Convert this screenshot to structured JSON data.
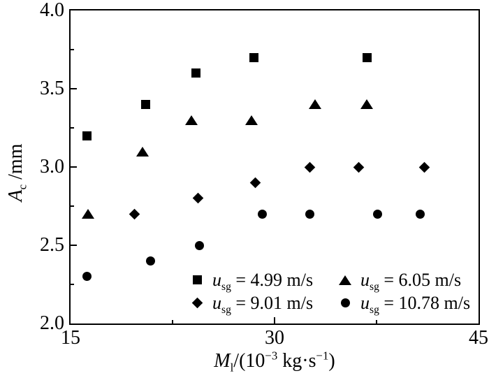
{
  "figure": {
    "background": "#ffffff",
    "ink": "#000000"
  },
  "chart_data": {
    "type": "scatter",
    "title": "",
    "xlabel": "M_l/(10^-3 kg·s^-1)",
    "ylabel": "A_c/mm",
    "xlim": [
      15,
      45
    ],
    "ylim": [
      2.0,
      4.0
    ],
    "grid": false,
    "legend_position": "inside bottom-center",
    "x_major_ticks": [
      15,
      30,
      45
    ],
    "x_tick_labels": [
      "15",
      "30",
      "45"
    ],
    "x_minor_ticks": [
      22.5,
      37.5
    ],
    "y_major_ticks": [
      2.0,
      2.5,
      3.0,
      3.5,
      4.0
    ],
    "y_tick_labels": [
      "2.0",
      "2.5",
      "3.0",
      "3.5",
      "4.0"
    ],
    "y_minor_ticks": [
      2.25,
      2.75,
      3.25,
      3.75
    ],
    "marker_color": "#000000",
    "series": [
      {
        "name": "u_sg = 4.99 m/s",
        "marker": "square",
        "points": [
          [
            16.2,
            3.2
          ],
          [
            20.5,
            3.4
          ],
          [
            24.2,
            3.6
          ],
          [
            28.5,
            3.7
          ],
          [
            36.8,
            3.7
          ]
        ]
      },
      {
        "name": "u_sg = 6.05 m/s",
        "marker": "triangle",
        "points": [
          [
            16.3,
            2.7
          ],
          [
            20.3,
            3.1
          ],
          [
            23.9,
            3.3
          ],
          [
            28.3,
            3.3
          ],
          [
            33.0,
            3.4
          ],
          [
            36.8,
            3.4
          ]
        ]
      },
      {
        "name": "u_sg = 9.01 m/s",
        "marker": "diamond",
        "points": [
          [
            19.7,
            2.7
          ],
          [
            24.4,
            2.8
          ],
          [
            28.6,
            2.9
          ],
          [
            32.6,
            3.0
          ],
          [
            36.2,
            3.0
          ],
          [
            41.0,
            3.0
          ]
        ]
      },
      {
        "name": "u_sg = 10.78 m/s",
        "marker": "circle",
        "points": [
          [
            16.2,
            2.3
          ],
          [
            20.9,
            2.4
          ],
          [
            24.5,
            2.5
          ],
          [
            29.1,
            2.7
          ],
          [
            32.6,
            2.7
          ],
          [
            37.6,
            2.7
          ],
          [
            40.7,
            2.7
          ]
        ]
      }
    ]
  },
  "labels": {
    "y_title": {
      "var": "A",
      "sub": "c",
      "rest": " /mm"
    },
    "x_title": {
      "var": "M",
      "sub": "l",
      "p1": "/(10",
      "sup1": "−3",
      "p2": " kg·s",
      "sup2": "−1",
      "p3": ")"
    }
  },
  "legend": {
    "items": [
      {
        "marker": "square",
        "var": "u",
        "sub": "sg",
        "rest": " = 4.99 m/s"
      },
      {
        "marker": "triangle",
        "var": "u",
        "sub": "sg",
        "rest": " = 6.05 m/s"
      },
      {
        "marker": "diamond",
        "var": "u",
        "sub": "sg",
        "rest": " = 9.01 m/s"
      },
      {
        "marker": "circle",
        "var": "u",
        "sub": "sg",
        "rest": " = 10.78 m/s"
      }
    ]
  }
}
